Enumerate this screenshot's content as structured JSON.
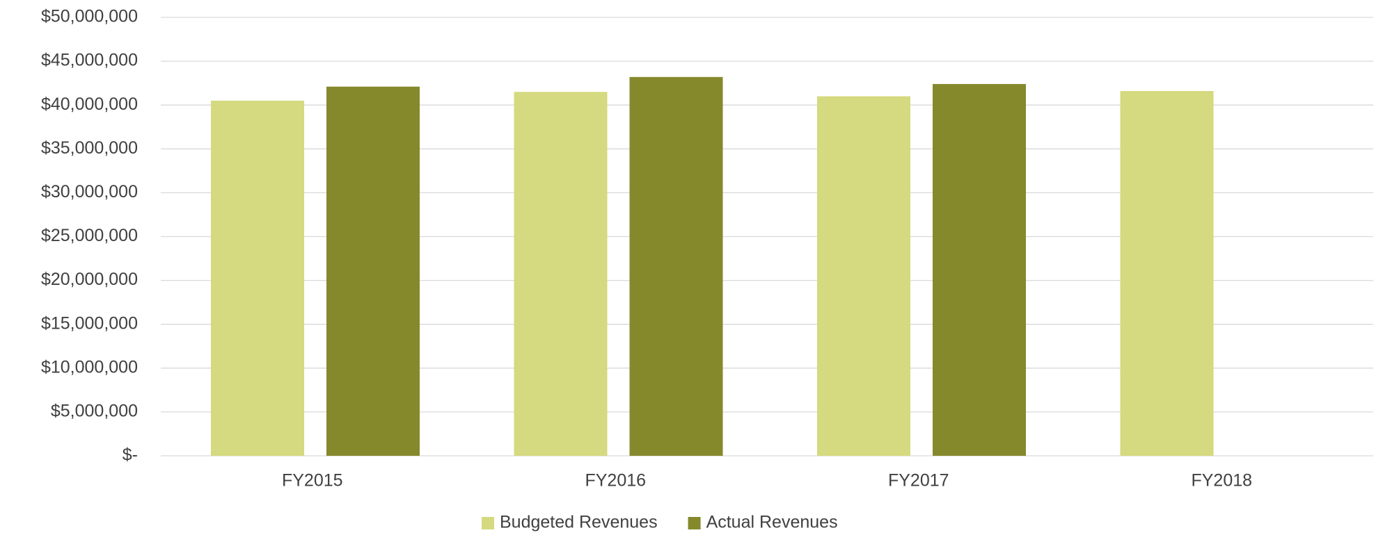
{
  "chart_data": {
    "type": "bar",
    "categories": [
      "FY2015",
      "FY2016",
      "FY2017",
      "FY2018"
    ],
    "series": [
      {
        "name": "Budgeted Revenues",
        "color": "#d5d97f",
        "values": [
          40500000,
          41500000,
          41000000,
          41600000
        ]
      },
      {
        "name": "Actual Revenues",
        "color": "#85892b",
        "values": [
          42100000,
          43200000,
          42400000,
          null
        ]
      }
    ],
    "ylim": [
      0,
      50000000
    ],
    "yticks": [
      {
        "value": 0,
        "label": "$-"
      },
      {
        "value": 5000000,
        "label": "$5,000,000"
      },
      {
        "value": 10000000,
        "label": "$10,000,000"
      },
      {
        "value": 15000000,
        "label": "$15,000,000"
      },
      {
        "value": 20000000,
        "label": "$20,000,000"
      },
      {
        "value": 25000000,
        "label": "$25,000,000"
      },
      {
        "value": 30000000,
        "label": "$30,000,000"
      },
      {
        "value": 35000000,
        "label": "$35,000,000"
      },
      {
        "value": 40000000,
        "label": "$40,000,000"
      },
      {
        "value": 45000000,
        "label": "$45,000,000"
      },
      {
        "value": 50000000,
        "label": "$50,000,000"
      }
    ],
    "grid": true,
    "legend": "bottom"
  }
}
